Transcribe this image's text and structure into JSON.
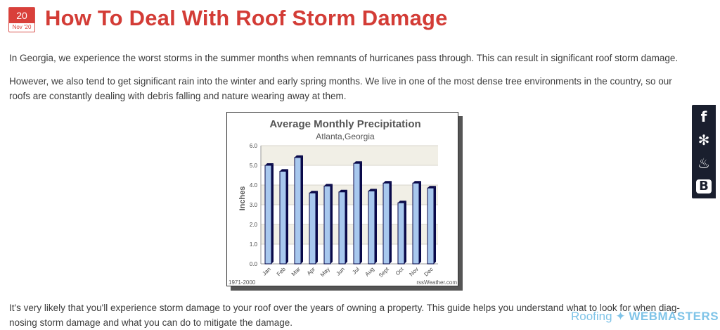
{
  "post": {
    "date_day": "20",
    "date_month": "Nov '20",
    "title": "How To Deal With Roof Storm Damage",
    "paragraphs": [
      "In Georgia, we experience the worst storms in the summer months when remnants of hurricanes pass through. This can result in significant roof storm damage.",
      "However, we also tend to get significant rain into the winter and early spring months. We live in one of the most dense tree environments in the country, so our roofs are constantly dealing with debris falling and nature wearing away at them.",
      "It's very likely that you'll experience storm damage to your roof over the years of owning a property. This guide helps you understand what to look for when diag-nosing storm damage and what you can do to mitigate the damage."
    ]
  },
  "chart_data": {
    "type": "bar",
    "title": "Average Monthly Precipitation",
    "subtitle": "Atlanta,Georgia",
    "ylabel": "Inches",
    "xlabel": "",
    "ylim": [
      0,
      6
    ],
    "yticks": [
      "0.0",
      "1.0",
      "2.0",
      "3.0",
      "4.0",
      "5.0",
      "6.0"
    ],
    "categories": [
      "Jan",
      "Feb",
      "Mar",
      "Apr",
      "May",
      "Jun",
      "Jul",
      "Aug",
      "Sept",
      "Oct",
      "Nov",
      "Dec"
    ],
    "values": [
      5.0,
      4.7,
      5.4,
      3.6,
      3.95,
      3.65,
      5.1,
      3.7,
      4.1,
      3.1,
      4.1,
      3.85
    ],
    "footer_left": "1971-2000",
    "footer_right": "rssWeather.com",
    "grid": true,
    "bar_color": "#a8c8ee"
  },
  "social": {
    "icons": [
      "facebook-icon",
      "yelp-icon",
      "fire-icon",
      "blogger-icon"
    ],
    "glyphs": [
      "f",
      "✻",
      "♨",
      "B"
    ],
    "bg_color": "#1a1f2e"
  },
  "watermark": {
    "part1": "Roofing",
    "part2": "✦",
    "part3": "WEBMASTERS"
  }
}
